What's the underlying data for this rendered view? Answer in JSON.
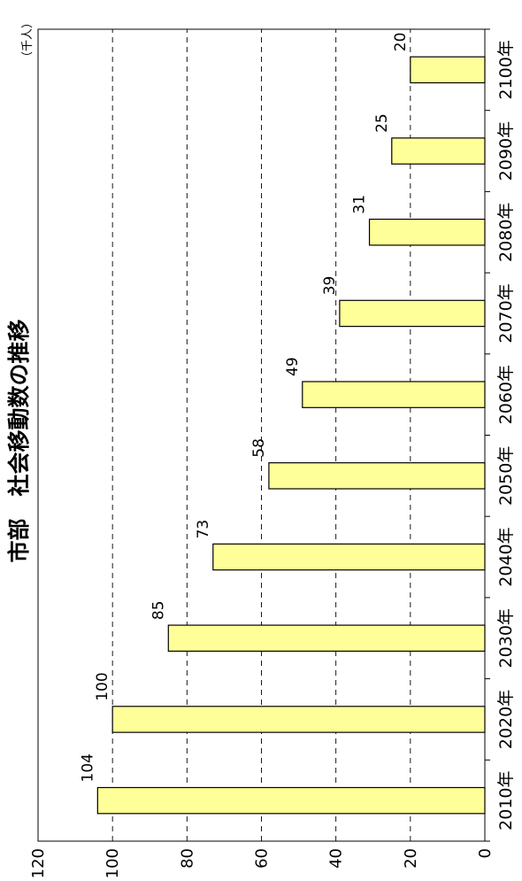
{
  "chart_data": {
    "type": "bar",
    "title": "市部　社会移動数の推移",
    "unit_label": "（千人）",
    "categories": [
      "2010年",
      "2020年",
      "2030年",
      "2040年",
      "2050年",
      "2060年",
      "2070年",
      "2080年",
      "2090年",
      "2100年"
    ],
    "values": [
      104,
      100,
      85,
      73,
      58,
      49,
      39,
      31,
      25,
      20
    ],
    "ylim": [
      0,
      120
    ],
    "yticks": [
      0,
      20,
      40,
      60,
      80,
      100,
      120
    ],
    "grid": true,
    "bar_color": "#FFFF99",
    "bar_stroke": "#000000"
  }
}
